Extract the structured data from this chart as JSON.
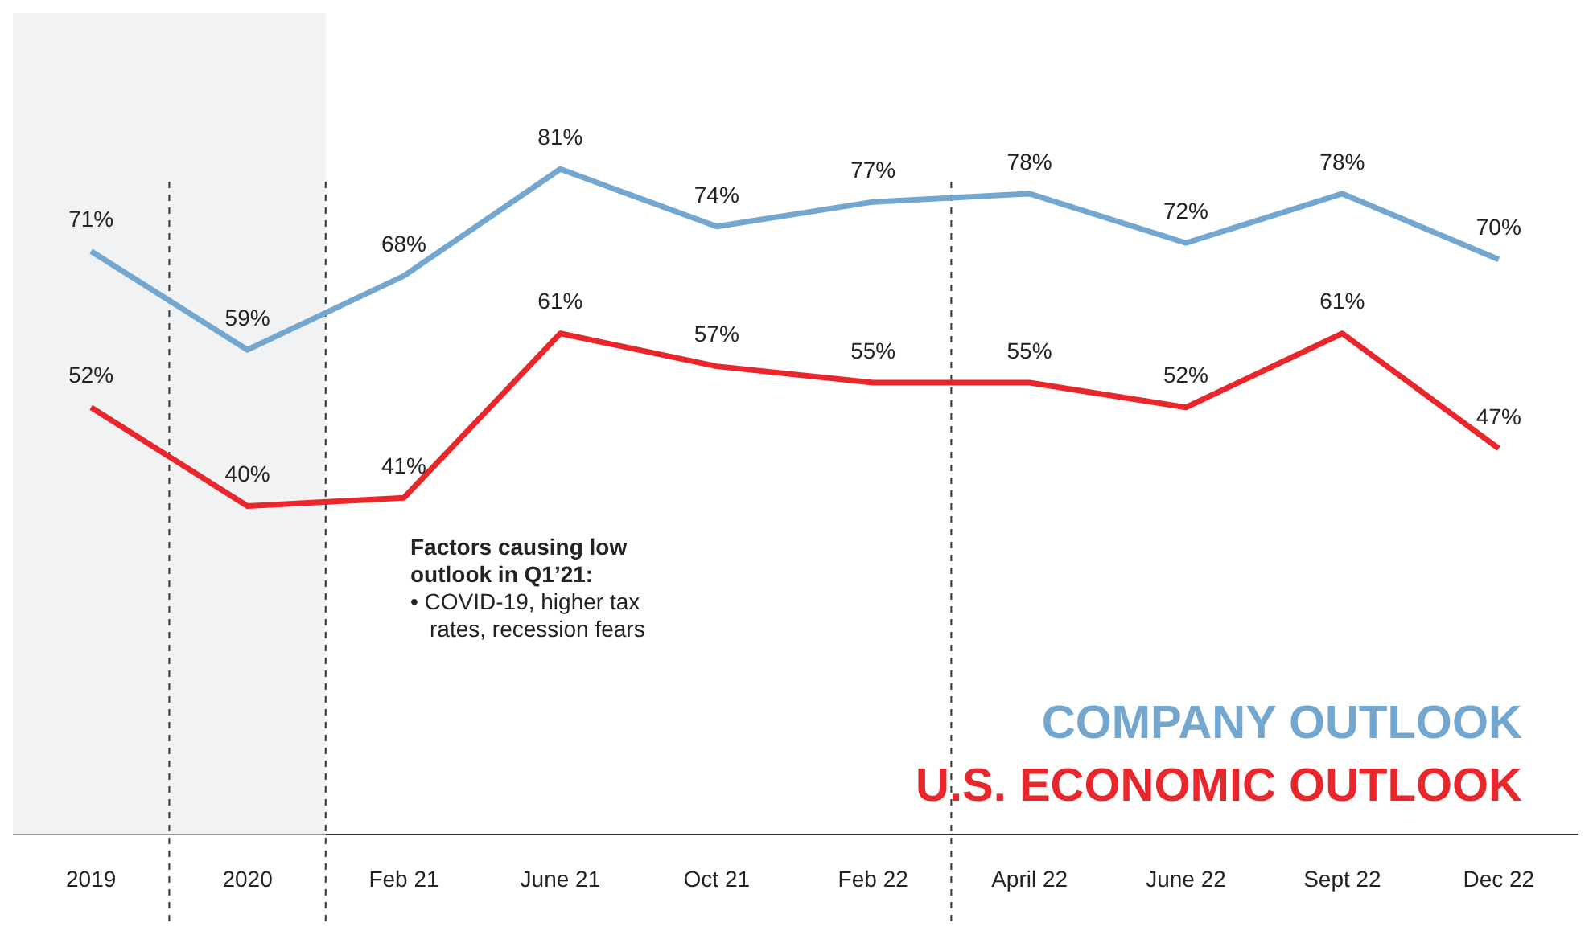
{
  "chart_data": {
    "type": "line",
    "categories": [
      "2019",
      "2020",
      "Feb 21",
      "June 21",
      "Oct 21",
      "Feb 22",
      "April 22",
      "June 22",
      "Sept 22",
      "Dec 22"
    ],
    "series": [
      {
        "name": "COMPANY OUTLOOK",
        "color": "#74a7cf",
        "values": [
          71,
          59,
          68,
          81,
          74,
          77,
          78,
          72,
          78,
          70
        ],
        "value_labels": [
          "71%",
          "59%",
          "68%",
          "81%",
          "74%",
          "77%",
          "78%",
          "72%",
          "78%",
          "70%"
        ]
      },
      {
        "name": "U.S. ECONOMIC OUTLOOK",
        "color": "#e8262b",
        "values": [
          52,
          40,
          41,
          61,
          57,
          55,
          55,
          52,
          61,
          47
        ],
        "value_labels": [
          "52%",
          "40%",
          "41%",
          "61%",
          "57%",
          "55%",
          "55%",
          "52%",
          "61%",
          "47%"
        ]
      }
    ],
    "tick_labels": "x",
    "legend": "bottom right",
    "grid": false,
    "marker": "none",
    "line_style": "solid",
    "bands": [
      {
        "axis": "x",
        "from": "2019",
        "to": "2020",
        "color": "#f1f2f4"
      }
    ],
    "annotations": [
      "Factors causing low outlook in Q1’21:",
      "• COVID-19, higher tax rates, recession fears"
    ]
  }
}
